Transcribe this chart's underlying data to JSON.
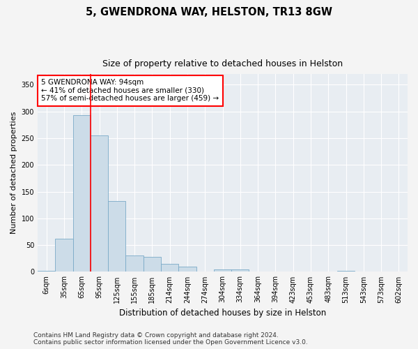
{
  "title": "5, GWENDRONA WAY, HELSTON, TR13 8GW",
  "subtitle": "Size of property relative to detached houses in Helston",
  "xlabel": "Distribution of detached houses by size in Helston",
  "ylabel": "Number of detached properties",
  "categories": [
    "6sqm",
    "35sqm",
    "65sqm",
    "95sqm",
    "125sqm",
    "155sqm",
    "185sqm",
    "214sqm",
    "244sqm",
    "274sqm",
    "304sqm",
    "334sqm",
    "364sqm",
    "394sqm",
    "423sqm",
    "453sqm",
    "483sqm",
    "513sqm",
    "543sqm",
    "573sqm",
    "602sqm"
  ],
  "values": [
    2,
    62,
    293,
    255,
    133,
    30,
    28,
    15,
    10,
    0,
    4,
    4,
    0,
    0,
    0,
    0,
    0,
    2,
    0,
    0,
    0
  ],
  "bar_color": "#ccdce8",
  "bar_edge_color": "#7aaac8",
  "red_line_x": 2.5,
  "ylim": [
    0,
    370
  ],
  "yticks": [
    0,
    50,
    100,
    150,
    200,
    250,
    300,
    350
  ],
  "annotation_box_text": "5 GWENDRONA WAY: 94sqm\n← 41% of detached houses are smaller (330)\n57% of semi-detached houses are larger (459) →",
  "footer_text": "Contains HM Land Registry data © Crown copyright and database right 2024.\nContains public sector information licensed under the Open Government Licence v3.0.",
  "bg_color": "#f4f4f4",
  "plot_bg_color": "#e8edf2",
  "grid_color": "#ffffff",
  "title_fontsize": 10.5,
  "subtitle_fontsize": 9,
  "axis_label_fontsize": 8,
  "tick_fontsize": 7,
  "annotation_fontsize": 7.5,
  "footer_fontsize": 6.5
}
